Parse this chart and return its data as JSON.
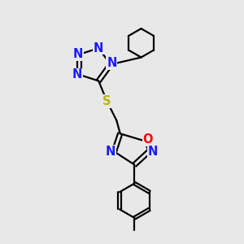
{
  "bg_color": "#e8e8e8",
  "bond_color": "#000000",
  "N_color": "#1a1aff",
  "O_color": "#ff0000",
  "S_color": "#b8b800",
  "line_width": 1.6,
  "font_size": 10.5,
  "fig_w": 3.0,
  "fig_h": 3.0,
  "dpi": 100,
  "xlim": [
    0,
    10
  ],
  "ylim": [
    0,
    10
  ]
}
